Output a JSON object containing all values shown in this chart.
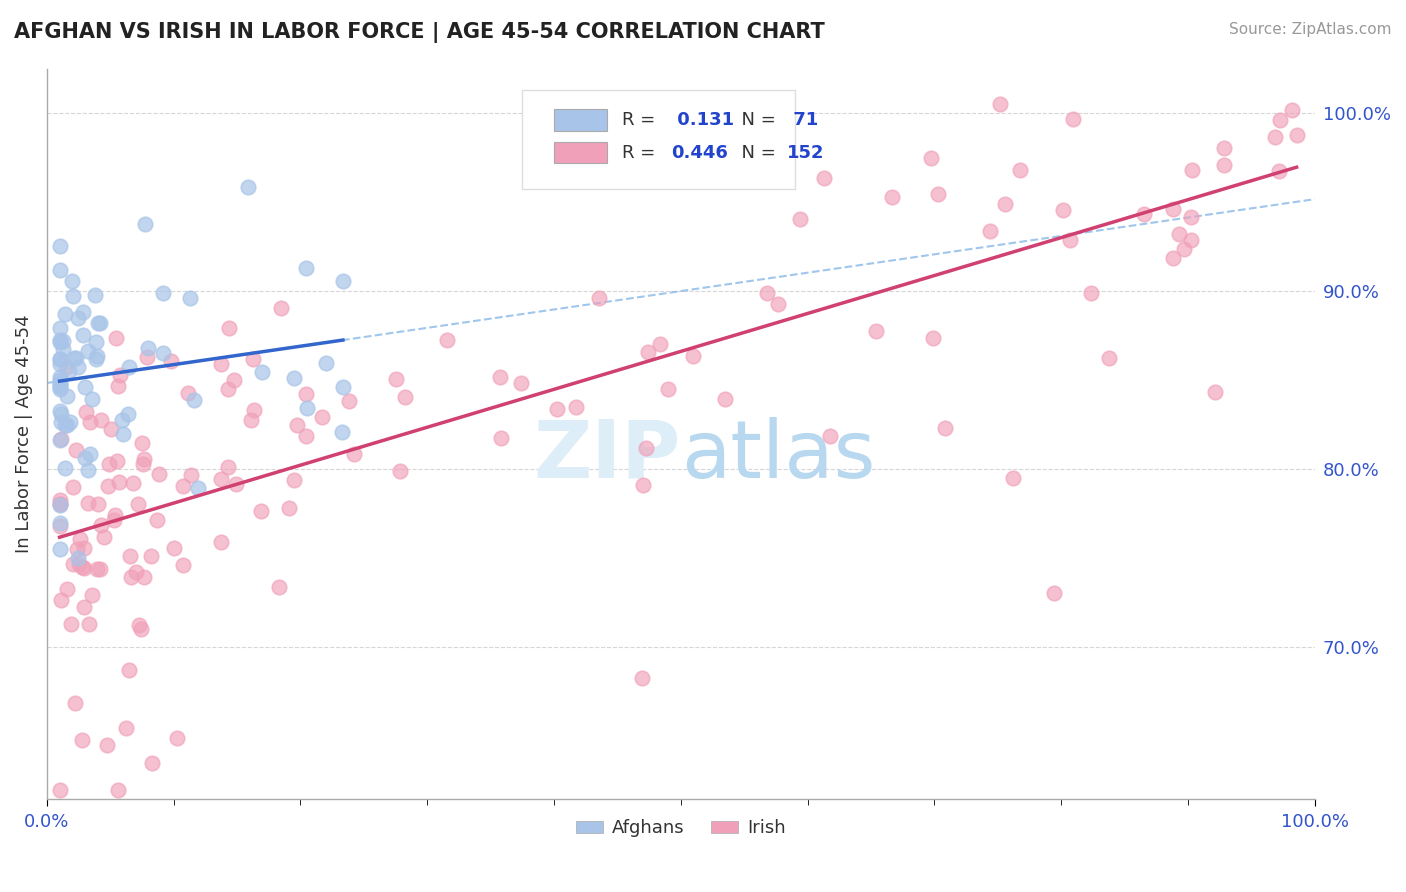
{
  "title": "AFGHAN VS IRISH IN LABOR FORCE | AGE 45-54 CORRELATION CHART",
  "source": "Source: ZipAtlas.com",
  "ylabel": "In Labor Force | Age 45-54",
  "xlim": [
    0.0,
    1.0
  ],
  "ylim": [
    0.615,
    1.025
  ],
  "yticks": [
    0.7,
    0.8,
    0.9,
    1.0
  ],
  "ytick_labels": [
    "70.0%",
    "80.0%",
    "90.0%",
    "100.0%"
  ],
  "xtick_labels": [
    "0.0%",
    "100.0%"
  ],
  "legend_R_afghan": "0.131",
  "legend_N_afghan": "71",
  "legend_R_irish": "0.446",
  "legend_N_irish": "152",
  "afghan_color": "#a8c4e8",
  "irish_color": "#f0a0b8",
  "afghan_line_color": "#3366cc",
  "irish_line_color": "#d04070",
  "afghan_dash_color": "#88b8e8",
  "background_color": "#ffffff",
  "watermark_color": "#ddeef8",
  "title_color": "#222222",
  "source_color": "#999999",
  "tick_color": "#3355cc",
  "ylabel_color": "#333333",
  "grid_color": "#cccccc",
  "spine_color": "#aaaaaa"
}
